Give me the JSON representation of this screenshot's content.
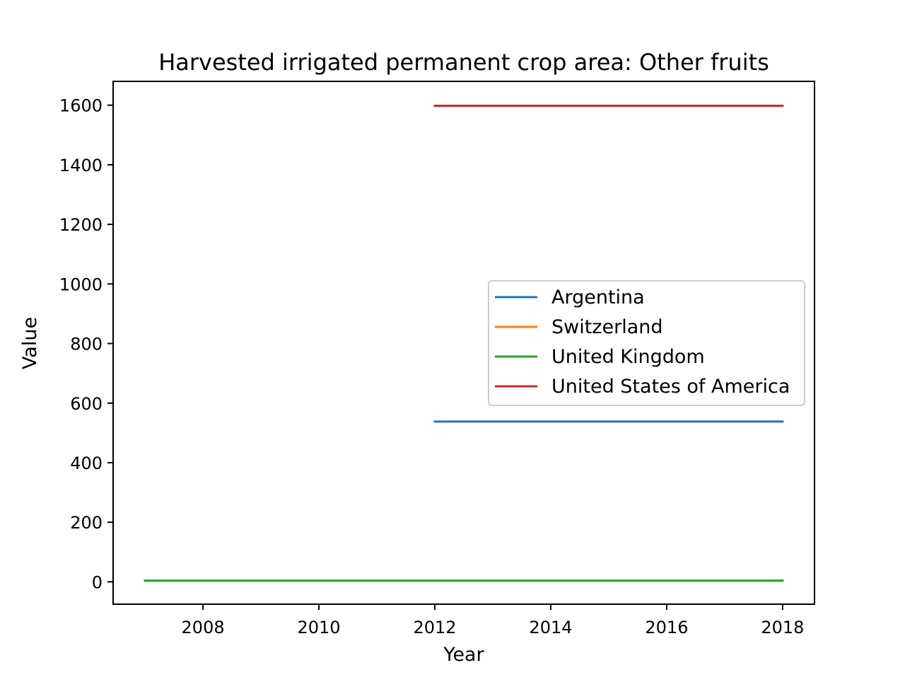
{
  "chart_data": {
    "type": "line",
    "title": "Harvested irrigated permanent crop area: Other fruits",
    "xlabel": "Year",
    "ylabel": "Value",
    "xlim": [
      2006.45,
      2018.55
    ],
    "ylim": [
      -75,
      1680
    ],
    "xticks": [
      2008,
      2010,
      2012,
      2014,
      2016,
      2018
    ],
    "xtick_labels": [
      "2008",
      "2010",
      "2012",
      "2014",
      "2016",
      "2018"
    ],
    "yticks": [
      0,
      200,
      400,
      600,
      800,
      1000,
      1200,
      1400,
      1600
    ],
    "ytick_labels": [
      "0",
      "200",
      "400",
      "600",
      "800",
      "1000",
      "1200",
      "1400",
      "1600"
    ],
    "grid": false,
    "legend_position": "center-right",
    "series": [
      {
        "name": "Argentina",
        "color": "#1f77b4",
        "x": [
          2012,
          2018
        ],
        "y": [
          538,
          538
        ]
      },
      {
        "name": "Switzerland",
        "color": "#ff7f0e",
        "x": [
          2007,
          2018
        ],
        "y": [
          4,
          4
        ]
      },
      {
        "name": "United Kingdom",
        "color": "#2ca02c",
        "x": [
          2007,
          2018
        ],
        "y": [
          4,
          4
        ]
      },
      {
        "name": "United States of America",
        "color": "#d62728",
        "x": [
          2012,
          2018
        ],
        "y": [
          1598,
          1598
        ]
      }
    ]
  }
}
